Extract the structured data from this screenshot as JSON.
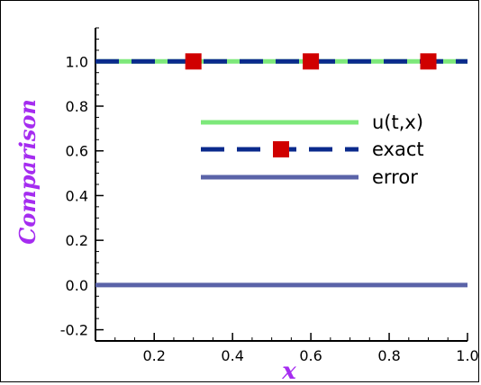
{
  "chart_data": {
    "type": "line",
    "xlabel": "x",
    "ylabel": "Comparison",
    "xlim": [
      0.05,
      1.0
    ],
    "ylim": [
      -0.25,
      1.15
    ],
    "xticks": [
      0.2,
      0.4,
      0.6,
      0.8,
      1.0
    ],
    "xtick_labels": [
      "0.2",
      "0.4",
      "0.6",
      "0.8",
      "1.0"
    ],
    "yticks": [
      -0.2,
      0.0,
      0.2,
      0.4,
      0.6,
      0.8,
      1.0
    ],
    "ytick_labels": [
      "-0.2",
      "0.0",
      "0.2",
      "0.4",
      "0.6",
      "0.8",
      "1.0"
    ],
    "legend_position": "center-right",
    "series": [
      {
        "name": "u(t,x)",
        "color": "#7de87a",
        "style": "solid",
        "x": [
          0.05,
          0.3,
          0.6,
          0.9,
          1.0
        ],
        "y": [
          1.0,
          1.0,
          1.0,
          1.0,
          1.0
        ]
      },
      {
        "name": "exact",
        "color": "#0a2a8c",
        "style": "dashed",
        "marker": "square",
        "marker_color": "#d00000",
        "x": [
          0.3,
          0.6,
          0.9
        ],
        "y": [
          1.0,
          1.0,
          1.0
        ]
      },
      {
        "name": "error",
        "color": "#5a63a8",
        "style": "solid",
        "x": [
          0.05,
          0.3,
          0.6,
          0.9,
          1.0
        ],
        "y": [
          0.0,
          0.0,
          0.0,
          0.0,
          0.0
        ]
      }
    ],
    "label_color": "#a52cf0"
  }
}
